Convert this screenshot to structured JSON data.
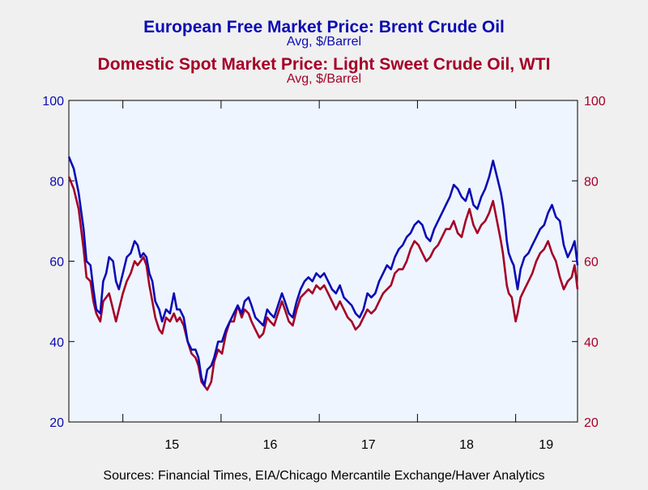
{
  "colors": {
    "background": "#f0f0f0",
    "plot_background": "#eef5ff",
    "brent": "#0b0bb3",
    "wti": "#a50026",
    "axis": "#000000"
  },
  "chart_data": {
    "type": "line",
    "title_1": "European Free Market Price: Brent Crude Oil",
    "subtitle_1": "Avg, $/Barrel",
    "title_2": "Domestic Spot Market Price: Light Sweet Crude Oil, WTI",
    "subtitle_2": "Avg, $/Barrel",
    "source": "Sources:  Financial Times, EIA/Chicago Mercantile Exchange/Haver Analytics",
    "x_range": [
      2014.45,
      2019.63
    ],
    "ylim": [
      20,
      100
    ],
    "y_ticks": [
      20,
      40,
      60,
      80,
      100
    ],
    "y_tick_labels": [
      "20",
      "40",
      "60",
      "80",
      "100"
    ],
    "x_ticks": [
      {
        "value": 2015.0,
        "label": "15"
      },
      {
        "value": 2016.0,
        "label": "16"
      },
      {
        "value": 2017.0,
        "label": "17"
      },
      {
        "value": 2018.0,
        "label": "18"
      },
      {
        "value": 2019.0,
        "label": "19"
      }
    ],
    "x_boundaries": [
      2015,
      2016,
      2017,
      2018,
      2019
    ],
    "grid": false,
    "series": [
      {
        "name": "European Free Market Price: Brent Crude Oil",
        "axis": "left",
        "color": "#0b0bb3",
        "points": [
          [
            2014.45,
            86
          ],
          [
            2014.5,
            83
          ],
          [
            2014.55,
            77
          ],
          [
            2014.6,
            68
          ],
          [
            2014.63,
            60
          ],
          [
            2014.67,
            59
          ],
          [
            2014.7,
            53
          ],
          [
            2014.73,
            48
          ],
          [
            2014.77,
            47
          ],
          [
            2014.8,
            55
          ],
          [
            2014.83,
            57
          ],
          [
            2014.86,
            61
          ],
          [
            2014.9,
            60
          ],
          [
            2014.93,
            55
          ],
          [
            2014.96,
            53
          ],
          [
            2015.0,
            57
          ],
          [
            2015.04,
            61
          ],
          [
            2015.08,
            62
          ],
          [
            2015.12,
            65
          ],
          [
            2015.15,
            64
          ],
          [
            2015.18,
            61
          ],
          [
            2015.21,
            62
          ],
          [
            2015.24,
            61
          ],
          [
            2015.27,
            57
          ],
          [
            2015.3,
            55
          ],
          [
            2015.33,
            50
          ],
          [
            2015.37,
            48
          ],
          [
            2015.4,
            45
          ],
          [
            2015.44,
            48
          ],
          [
            2015.48,
            47
          ],
          [
            2015.52,
            52
          ],
          [
            2015.55,
            48
          ],
          [
            2015.58,
            48
          ],
          [
            2015.62,
            46
          ],
          [
            2015.66,
            40
          ],
          [
            2015.7,
            38
          ],
          [
            2015.74,
            38
          ],
          [
            2015.77,
            36
          ],
          [
            2015.8,
            31
          ],
          [
            2015.83,
            29
          ],
          [
            2015.86,
            33
          ],
          [
            2015.9,
            34
          ],
          [
            2015.93,
            36
          ],
          [
            2015.97,
            40
          ],
          [
            2016.01,
            40
          ],
          [
            2016.05,
            43
          ],
          [
            2016.09,
            45
          ],
          [
            2016.13,
            47
          ],
          [
            2016.17,
            49
          ],
          [
            2016.21,
            47
          ],
          [
            2016.24,
            50
          ],
          [
            2016.28,
            51
          ],
          [
            2016.31,
            49
          ],
          [
            2016.35,
            46
          ],
          [
            2016.39,
            45
          ],
          [
            2016.43,
            44
          ],
          [
            2016.47,
            48
          ],
          [
            2016.5,
            47
          ],
          [
            2016.54,
            46
          ],
          [
            2016.58,
            49
          ],
          [
            2016.62,
            52
          ],
          [
            2016.65,
            50
          ],
          [
            2016.69,
            47
          ],
          [
            2016.73,
            46
          ],
          [
            2016.77,
            50
          ],
          [
            2016.81,
            53
          ],
          [
            2016.85,
            55
          ],
          [
            2016.89,
            56
          ],
          [
            2016.93,
            55
          ],
          [
            2016.97,
            57
          ],
          [
            2017.01,
            56
          ],
          [
            2017.05,
            57
          ],
          [
            2017.09,
            55
          ],
          [
            2017.13,
            53
          ],
          [
            2017.17,
            52
          ],
          [
            2017.21,
            54
          ],
          [
            2017.25,
            51
          ],
          [
            2017.29,
            50
          ],
          [
            2017.33,
            49
          ],
          [
            2017.37,
            47
          ],
          [
            2017.41,
            46
          ],
          [
            2017.45,
            48
          ],
          [
            2017.49,
            52
          ],
          [
            2017.53,
            51
          ],
          [
            2017.57,
            52
          ],
          [
            2017.61,
            55
          ],
          [
            2017.65,
            57
          ],
          [
            2017.69,
            59
          ],
          [
            2017.73,
            58
          ],
          [
            2017.77,
            61
          ],
          [
            2017.81,
            63
          ],
          [
            2017.85,
            64
          ],
          [
            2017.89,
            66
          ],
          [
            2017.93,
            67
          ],
          [
            2017.97,
            69
          ],
          [
            2018.01,
            70
          ],
          [
            2018.05,
            69
          ],
          [
            2018.09,
            66
          ],
          [
            2018.13,
            65
          ],
          [
            2018.17,
            68
          ],
          [
            2018.21,
            70
          ],
          [
            2018.25,
            72
          ],
          [
            2018.29,
            74
          ],
          [
            2018.33,
            76
          ],
          [
            2018.37,
            79
          ],
          [
            2018.41,
            78
          ],
          [
            2018.45,
            76
          ],
          [
            2018.49,
            75
          ],
          [
            2018.53,
            78
          ],
          [
            2018.57,
            74
          ],
          [
            2018.61,
            73
          ],
          [
            2018.65,
            76
          ],
          [
            2018.69,
            78
          ],
          [
            2018.73,
            81
          ],
          [
            2018.77,
            85
          ],
          [
            2018.81,
            81
          ],
          [
            2018.85,
            77
          ],
          [
            2018.87,
            74
          ],
          [
            2018.89,
            70
          ],
          [
            2018.91,
            65
          ],
          [
            2018.93,
            62
          ],
          [
            2018.96,
            60
          ],
          [
            2018.98,
            59
          ],
          [
            2019.0,
            56
          ],
          [
            2019.02,
            53
          ],
          [
            2019.05,
            58
          ],
          [
            2019.09,
            61
          ],
          [
            2019.13,
            62
          ],
          [
            2019.17,
            64
          ],
          [
            2019.21,
            66
          ],
          [
            2019.25,
            68
          ],
          [
            2019.29,
            69
          ],
          [
            2019.33,
            72
          ],
          [
            2019.37,
            74
          ],
          [
            2019.41,
            71
          ],
          [
            2019.45,
            70
          ],
          [
            2019.49,
            64
          ],
          [
            2019.53,
            61
          ],
          [
            2019.57,
            63
          ],
          [
            2019.6,
            65
          ],
          [
            2019.63,
            59
          ]
        ]
      },
      {
        "name": "Domestic Spot Market Price: Light Sweet Crude Oil, WTI",
        "axis": "right",
        "color": "#a50026",
        "points": [
          [
            2014.45,
            81
          ],
          [
            2014.5,
            78
          ],
          [
            2014.55,
            73
          ],
          [
            2014.6,
            63
          ],
          [
            2014.63,
            56
          ],
          [
            2014.67,
            55
          ],
          [
            2014.7,
            50
          ],
          [
            2014.73,
            47
          ],
          [
            2014.77,
            45
          ],
          [
            2014.8,
            50
          ],
          [
            2014.83,
            51
          ],
          [
            2014.86,
            52
          ],
          [
            2014.9,
            48
          ],
          [
            2014.93,
            45
          ],
          [
            2014.96,
            48
          ],
          [
            2015.0,
            52
          ],
          [
            2015.04,
            55
          ],
          [
            2015.08,
            57
          ],
          [
            2015.12,
            60
          ],
          [
            2015.15,
            59
          ],
          [
            2015.18,
            60
          ],
          [
            2015.21,
            61
          ],
          [
            2015.24,
            59
          ],
          [
            2015.27,
            54
          ],
          [
            2015.3,
            50
          ],
          [
            2015.33,
            46
          ],
          [
            2015.37,
            43
          ],
          [
            2015.4,
            42
          ],
          [
            2015.44,
            46
          ],
          [
            2015.48,
            45
          ],
          [
            2015.52,
            47
          ],
          [
            2015.55,
            45
          ],
          [
            2015.58,
            46
          ],
          [
            2015.62,
            44
          ],
          [
            2015.66,
            40
          ],
          [
            2015.7,
            37
          ],
          [
            2015.74,
            36
          ],
          [
            2015.77,
            34
          ],
          [
            2015.8,
            30
          ],
          [
            2015.83,
            29
          ],
          [
            2015.86,
            28
          ],
          [
            2015.9,
            30
          ],
          [
            2015.93,
            35
          ],
          [
            2015.97,
            38
          ],
          [
            2016.01,
            37
          ],
          [
            2016.05,
            42
          ],
          [
            2016.09,
            45
          ],
          [
            2016.13,
            45
          ],
          [
            2016.17,
            49
          ],
          [
            2016.21,
            46
          ],
          [
            2016.24,
            48
          ],
          [
            2016.28,
            47
          ],
          [
            2016.31,
            45
          ],
          [
            2016.35,
            43
          ],
          [
            2016.39,
            41
          ],
          [
            2016.43,
            42
          ],
          [
            2016.47,
            46
          ],
          [
            2016.5,
            45
          ],
          [
            2016.54,
            44
          ],
          [
            2016.58,
            47
          ],
          [
            2016.62,
            50
          ],
          [
            2016.65,
            48
          ],
          [
            2016.69,
            45
          ],
          [
            2016.73,
            44
          ],
          [
            2016.77,
            48
          ],
          [
            2016.81,
            51
          ],
          [
            2016.85,
            52
          ],
          [
            2016.89,
            53
          ],
          [
            2016.93,
            52
          ],
          [
            2016.97,
            54
          ],
          [
            2017.01,
            53
          ],
          [
            2017.05,
            54
          ],
          [
            2017.09,
            52
          ],
          [
            2017.13,
            50
          ],
          [
            2017.17,
            48
          ],
          [
            2017.21,
            50
          ],
          [
            2017.25,
            48
          ],
          [
            2017.29,
            46
          ],
          [
            2017.33,
            45
          ],
          [
            2017.37,
            43
          ],
          [
            2017.41,
            44
          ],
          [
            2017.45,
            46
          ],
          [
            2017.49,
            48
          ],
          [
            2017.53,
            47
          ],
          [
            2017.57,
            48
          ],
          [
            2017.61,
            50
          ],
          [
            2017.65,
            52
          ],
          [
            2017.69,
            53
          ],
          [
            2017.73,
            54
          ],
          [
            2017.77,
            57
          ],
          [
            2017.81,
            58
          ],
          [
            2017.85,
            58
          ],
          [
            2017.89,
            60
          ],
          [
            2017.93,
            63
          ],
          [
            2017.97,
            65
          ],
          [
            2018.01,
            64
          ],
          [
            2018.05,
            62
          ],
          [
            2018.09,
            60
          ],
          [
            2018.13,
            61
          ],
          [
            2018.17,
            63
          ],
          [
            2018.21,
            64
          ],
          [
            2018.25,
            66
          ],
          [
            2018.29,
            68
          ],
          [
            2018.33,
            68
          ],
          [
            2018.37,
            70
          ],
          [
            2018.41,
            67
          ],
          [
            2018.45,
            66
          ],
          [
            2018.49,
            70
          ],
          [
            2018.53,
            73
          ],
          [
            2018.57,
            69
          ],
          [
            2018.61,
            67
          ],
          [
            2018.65,
            69
          ],
          [
            2018.69,
            70
          ],
          [
            2018.73,
            72
          ],
          [
            2018.77,
            75
          ],
          [
            2018.81,
            70
          ],
          [
            2018.85,
            65
          ],
          [
            2018.87,
            62
          ],
          [
            2018.89,
            58
          ],
          [
            2018.91,
            54
          ],
          [
            2018.93,
            52
          ],
          [
            2018.96,
            51
          ],
          [
            2018.98,
            48
          ],
          [
            2019.0,
            45
          ],
          [
            2019.02,
            47
          ],
          [
            2019.05,
            51
          ],
          [
            2019.09,
            53
          ],
          [
            2019.13,
            55
          ],
          [
            2019.17,
            57
          ],
          [
            2019.21,
            60
          ],
          [
            2019.25,
            62
          ],
          [
            2019.29,
            63
          ],
          [
            2019.33,
            65
          ],
          [
            2019.37,
            62
          ],
          [
            2019.41,
            60
          ],
          [
            2019.45,
            56
          ],
          [
            2019.49,
            53
          ],
          [
            2019.53,
            55
          ],
          [
            2019.57,
            56
          ],
          [
            2019.6,
            59
          ],
          [
            2019.63,
            53
          ]
        ]
      }
    ]
  }
}
